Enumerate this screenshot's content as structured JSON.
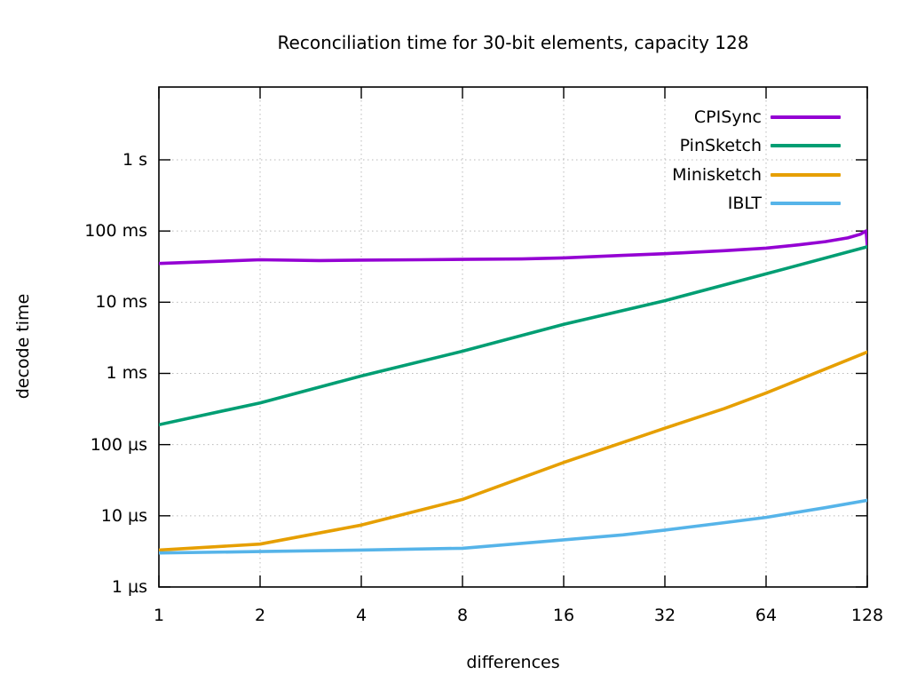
{
  "title": "Reconciliation time for 30-bit elements, capacity 128",
  "x_axis_label": "differences",
  "y_axis_label": "decode time",
  "colors": {
    "background": "#ffffff",
    "axis_border": "#000000",
    "grid": "#b9b9b9",
    "text": "#000000"
  },
  "chart_data": {
    "type": "line",
    "title": "Reconciliation time for 30-bit elements, capacity 128",
    "xlabel": "differences",
    "ylabel": "decode time",
    "x_scale": "log2",
    "y_scale": "log10",
    "grid": "dotted",
    "legend_position": "top-right-inside",
    "xlim": [
      1,
      128
    ],
    "ylim_seconds": [
      1e-06,
      10
    ],
    "x_ticks": [
      "1",
      "2",
      "4",
      "8",
      "16",
      "32",
      "64",
      "128"
    ],
    "x_tick_values": [
      1,
      2,
      4,
      8,
      16,
      32,
      64,
      128
    ],
    "y_ticks": [
      "1 µs",
      "10 µs",
      "100 µs",
      "1 ms",
      "10 ms",
      "100 ms",
      "1 s"
    ],
    "y_tick_values_seconds": [
      1e-06,
      1e-05,
      0.0001,
      0.001,
      0.01,
      0.1,
      1
    ],
    "series": [
      {
        "name": "CPISync",
        "color": "#9400d3",
        "points_diff_seconds": [
          [
            1,
            0.035
          ],
          [
            2,
            0.0395
          ],
          [
            3,
            0.0385
          ],
          [
            4,
            0.039
          ],
          [
            6,
            0.0395
          ],
          [
            8,
            0.04
          ],
          [
            12,
            0.0405
          ],
          [
            16,
            0.042
          ],
          [
            24,
            0.0455
          ],
          [
            32,
            0.048
          ],
          [
            48,
            0.053
          ],
          [
            64,
            0.0575
          ],
          [
            80,
            0.064
          ],
          [
            96,
            0.071
          ],
          [
            112,
            0.08
          ],
          [
            122,
            0.09
          ],
          [
            127,
            0.1
          ],
          [
            128,
            0.063
          ]
        ]
      },
      {
        "name": "PinSketch",
        "color": "#009e73",
        "points_diff_seconds": [
          [
            1,
            0.00019
          ],
          [
            2,
            0.000385
          ],
          [
            4,
            0.00092
          ],
          [
            8,
            0.00205
          ],
          [
            16,
            0.0049
          ],
          [
            32,
            0.0105
          ],
          [
            64,
            0.025
          ],
          [
            128,
            0.06
          ]
        ]
      },
      {
        "name": "Minisketch",
        "color": "#e69f00",
        "points_diff_seconds": [
          [
            1,
            3.3e-06
          ],
          [
            2,
            4e-06
          ],
          [
            4,
            7.4e-06
          ],
          [
            8,
            1.7e-05
          ],
          [
            16,
            5.6e-05
          ],
          [
            32,
            0.00017
          ],
          [
            48,
            0.00032
          ],
          [
            64,
            0.00053
          ],
          [
            96,
            0.00115
          ],
          [
            128,
            0.002
          ]
        ]
      },
      {
        "name": "IBLT",
        "color": "#56b4e9",
        "points_diff_seconds": [
          [
            1,
            3e-06
          ],
          [
            2,
            3.15e-06
          ],
          [
            4,
            3.3e-06
          ],
          [
            8,
            3.5e-06
          ],
          [
            16,
            4.6e-06
          ],
          [
            24,
            5.4e-06
          ],
          [
            32,
            6.3e-06
          ],
          [
            48,
            8e-06
          ],
          [
            64,
            9.5e-06
          ],
          [
            96,
            1.3e-05
          ],
          [
            128,
            1.65e-05
          ]
        ]
      }
    ]
  }
}
